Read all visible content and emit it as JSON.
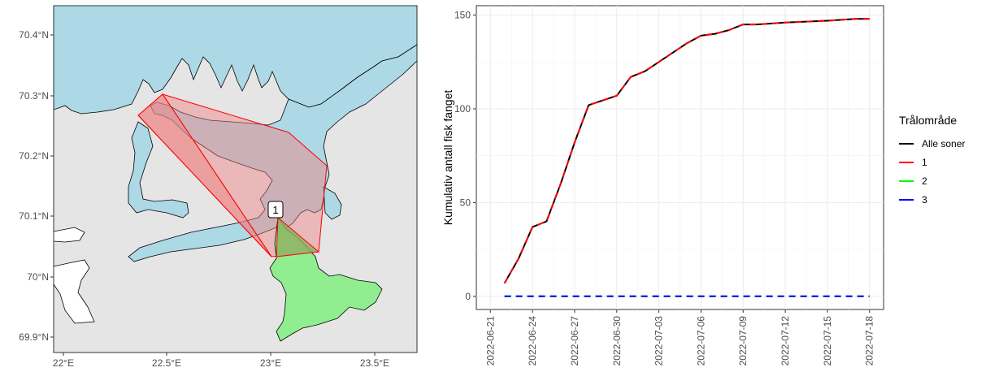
{
  "map": {
    "lon_ticks": [
      "22°E",
      "22.5°E",
      "23°E",
      "23.5°E"
    ],
    "lat_ticks": [
      "70.4°N",
      "70.3°N",
      "70.2°N",
      "70.1°N",
      "70°N",
      "69.9°N"
    ],
    "zone_label": "1",
    "colors": {
      "sea": "#add8e6",
      "land": "#e5e5e5",
      "zone1_fill": "#f08080",
      "zone2_fill": "#90ee90",
      "zone_border": "#ff0000"
    }
  },
  "chart_data": {
    "type": "line",
    "xlabel": "",
    "ylabel": "Kumulativ antall fisk fanget",
    "x_ticks": [
      "2022-06-21",
      "2022-06-24",
      "2022-06-27",
      "2022-06-30",
      "2022-07-03",
      "2022-07-06",
      "2022-07-09",
      "2022-07-12",
      "2022-07-15",
      "2022-07-18"
    ],
    "y_ticks": [
      "0",
      "50",
      "100",
      "150"
    ],
    "xlim": [
      "2022-06-20",
      "2022-07-19"
    ],
    "ylim": [
      -7,
      155
    ],
    "grid": true,
    "legend": {
      "title": "Trålområde",
      "position": "right",
      "items": [
        {
          "label": "Alle soner",
          "color": "#000000",
          "dash": "solid"
        },
        {
          "label": "1",
          "color": "#ff0000",
          "dash": "dashed"
        },
        {
          "label": "2",
          "color": "#00ff00",
          "dash": "dashed"
        },
        {
          "label": "3",
          "color": "#0000ff",
          "dash": "dashed"
        }
      ]
    },
    "series": [
      {
        "name": "Alle soner",
        "color": "#000000",
        "dash": "solid",
        "x": [
          "2022-06-22",
          "2022-06-23",
          "2022-06-24",
          "2022-06-25",
          "2022-06-26",
          "2022-06-27",
          "2022-06-28",
          "2022-06-30",
          "2022-07-01",
          "2022-07-02",
          "2022-07-04",
          "2022-07-05",
          "2022-07-06",
          "2022-07-07",
          "2022-07-08",
          "2022-07-09",
          "2022-07-10",
          "2022-07-12",
          "2022-07-15",
          "2022-07-17",
          "2022-07-18"
        ],
        "y": [
          7,
          20,
          37,
          40,
          60,
          82,
          102,
          107,
          117,
          120,
          130,
          135,
          139,
          140,
          142,
          145,
          145,
          146,
          147,
          148,
          148
        ]
      },
      {
        "name": "1",
        "color": "#ff0000",
        "dash": "dashed",
        "x": [
          "2022-06-22",
          "2022-06-23",
          "2022-06-24",
          "2022-06-25",
          "2022-06-26",
          "2022-06-27",
          "2022-06-28",
          "2022-06-30",
          "2022-07-01",
          "2022-07-02",
          "2022-07-04",
          "2022-07-05",
          "2022-07-06",
          "2022-07-07",
          "2022-07-08",
          "2022-07-09",
          "2022-07-10",
          "2022-07-12",
          "2022-07-15",
          "2022-07-17",
          "2022-07-18"
        ],
        "y": [
          7,
          20,
          37,
          40,
          60,
          82,
          102,
          107,
          117,
          120,
          130,
          135,
          139,
          140,
          142,
          145,
          145,
          146,
          147,
          148,
          148
        ]
      },
      {
        "name": "2",
        "color": "#00ff00",
        "dash": "dashed",
        "x": [
          "2022-06-22",
          "2022-07-18"
        ],
        "y": [
          0,
          0
        ]
      },
      {
        "name": "3",
        "color": "#0000ff",
        "dash": "dashed",
        "x": [
          "2022-06-22",
          "2022-07-18"
        ],
        "y": [
          0,
          0
        ]
      }
    ]
  }
}
